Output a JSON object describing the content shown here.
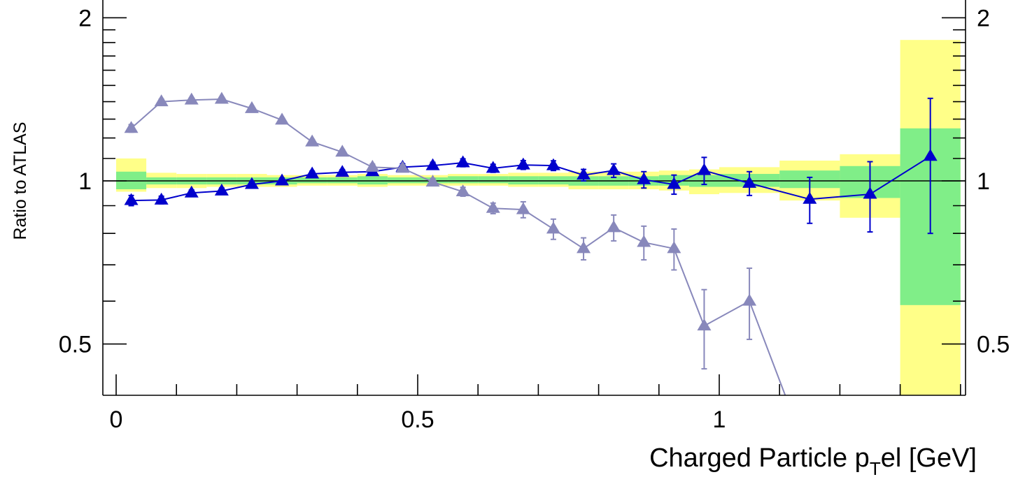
{
  "chart_data": {
    "type": "line",
    "title": "",
    "xlabel": "Charged Particle p",
    "xlabel_subscript": "T",
    "xlabel_suffix": "el [GeV]",
    "ylabel": "Ratio to ATLAS",
    "xlim": [
      -0.01,
      1.4
    ],
    "ylim": [
      0.35,
      2.06
    ],
    "y_scale": "log",
    "x_ticks": [
      {
        "value": 0,
        "label": "0"
      },
      {
        "value": 0.5,
        "label": "0.5"
      },
      {
        "value": 1,
        "label": "1"
      }
    ],
    "y_ticks": [
      {
        "value": 0.5,
        "label": "0.5"
      },
      {
        "value": 1,
        "label": "1"
      },
      {
        "value": 2,
        "label": "2"
      }
    ],
    "reference_line": 1,
    "uncertainty_bands": {
      "bins": [
        0,
        0.05,
        0.1,
        0.15,
        0.2,
        0.25,
        0.3,
        0.35,
        0.4,
        0.45,
        0.5,
        0.55,
        0.6,
        0.65,
        0.7,
        0.75,
        0.8,
        0.85,
        0.9,
        0.95,
        1.0,
        1.1,
        1.2,
        1.3,
        1.4
      ],
      "inner": {
        "color": "#80ee88",
        "low": [
          0.965,
          0.985,
          0.985,
          0.985,
          0.985,
          0.985,
          0.99,
          0.99,
          0.985,
          0.99,
          0.99,
          0.99,
          0.99,
          0.985,
          0.985,
          0.98,
          0.98,
          0.98,
          0.98,
          0.975,
          0.975,
          0.97,
          0.93,
          0.59
        ],
        "high": [
          1.04,
          1.015,
          1.015,
          1.015,
          1.015,
          1.015,
          1.015,
          1.015,
          1.02,
          1.015,
          1.015,
          1.02,
          1.02,
          1.02,
          1.02,
          1.02,
          1.02,
          1.02,
          1.025,
          1.025,
          1.03,
          1.045,
          1.065,
          1.25
        ]
      },
      "outer": {
        "color": "#ffff88",
        "low": [
          0.955,
          0.97,
          0.97,
          0.975,
          0.975,
          0.975,
          0.98,
          0.98,
          0.975,
          0.98,
          0.98,
          0.98,
          0.98,
          0.975,
          0.975,
          0.965,
          0.965,
          0.965,
          0.96,
          0.945,
          0.95,
          0.92,
          0.855,
          0.35
        ],
        "high": [
          1.1,
          1.035,
          1.03,
          1.03,
          1.03,
          1.025,
          1.025,
          1.025,
          1.03,
          1.025,
          1.025,
          1.03,
          1.03,
          1.035,
          1.035,
          1.04,
          1.04,
          1.04,
          1.045,
          1.05,
          1.06,
          1.09,
          1.12,
          1.82
        ]
      }
    },
    "series": [
      {
        "color": "#0000cc",
        "marker": "triangle",
        "x": [
          0.025,
          0.075,
          0.125,
          0.175,
          0.225,
          0.275,
          0.325,
          0.375,
          0.425,
          0.475,
          0.525,
          0.575,
          0.625,
          0.675,
          0.725,
          0.775,
          0.825,
          0.875,
          0.925,
          0.975,
          1.05,
          1.15,
          1.25,
          1.35
        ],
        "y": [
          0.92,
          0.922,
          0.95,
          0.958,
          0.985,
          1.0,
          1.03,
          1.037,
          1.04,
          1.06,
          1.067,
          1.08,
          1.055,
          1.07,
          1.067,
          1.025,
          1.045,
          1.005,
          0.985,
          1.045,
          0.99,
          0.925,
          0.945,
          1.11
        ],
        "yerr": [
          0.02,
          0.015,
          0.012,
          0.012,
          0.012,
          0.012,
          0.012,
          0.012,
          0.014,
          0.015,
          0.015,
          0.018,
          0.018,
          0.02,
          0.022,
          0.025,
          0.03,
          0.035,
          0.04,
          0.06,
          0.05,
          0.09,
          0.14,
          0.31
        ]
      },
      {
        "color": "#8888bb",
        "marker": "triangle",
        "x": [
          0.025,
          0.075,
          0.125,
          0.175,
          0.225,
          0.275,
          0.325,
          0.375,
          0.425,
          0.475,
          0.525,
          0.575,
          0.625,
          0.675,
          0.725,
          0.775,
          0.825,
          0.875,
          0.925,
          0.975,
          1.05
        ],
        "y": [
          1.25,
          1.4,
          1.41,
          1.415,
          1.36,
          1.295,
          1.18,
          1.13,
          1.06,
          1.055,
          0.995,
          0.955,
          0.89,
          0.885,
          0.815,
          0.75,
          0.82,
          0.77,
          0.75,
          0.54,
          0.6
        ],
        "yerr": [
          0.02,
          0.015,
          0.012,
          0.012,
          0.012,
          0.012,
          0.012,
          0.012,
          0.014,
          0.015,
          0.015,
          0.018,
          0.02,
          0.03,
          0.035,
          0.035,
          0.045,
          0.055,
          0.065,
          0.09,
          0.09
        ],
        "line_extends_to": {
          "x": 1.13,
          "y": 0.35
        }
      }
    ]
  }
}
